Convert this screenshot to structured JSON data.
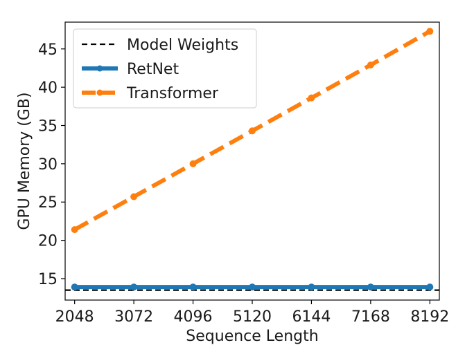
{
  "chart_data": {
    "type": "line",
    "xlabel": "Sequence Length",
    "ylabel": "GPU Memory (GB)",
    "x": [
      2048,
      3072,
      4096,
      5120,
      6144,
      7168,
      8192
    ],
    "x_tick_labels": [
      "2048",
      "3072",
      "4096",
      "5120",
      "6144",
      "7168",
      "8192"
    ],
    "y_ticks": [
      15,
      20,
      25,
      30,
      35,
      40,
      45
    ],
    "y_tick_labels": [
      "15",
      "20",
      "25",
      "30",
      "35",
      "40",
      "45"
    ],
    "xlim": [
      1884,
      8356
    ],
    "ylim": [
      12.2,
      48.5
    ],
    "grid": false,
    "legend_position": "top-left",
    "reference_line": {
      "name": "Model Weights",
      "value": 13.5,
      "color": "#000000",
      "style": "dashed"
    },
    "series": [
      {
        "name": "RetNet",
        "color": "#1f77b4",
        "style": "solid",
        "values": [
          13.9,
          13.9,
          13.9,
          13.9,
          13.9,
          13.9,
          13.9
        ]
      },
      {
        "name": "Transformer",
        "color": "#ff7f0e",
        "style": "dashed",
        "values": [
          21.4,
          25.7,
          30.0,
          34.3,
          38.6,
          42.9,
          47.3
        ]
      }
    ]
  }
}
